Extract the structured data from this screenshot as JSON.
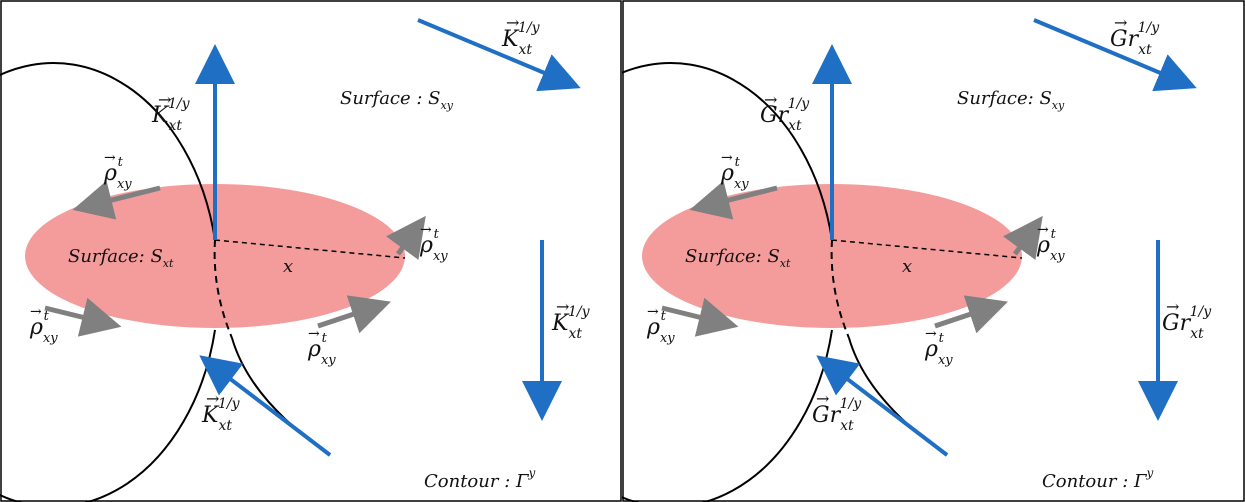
{
  "colors": {
    "border": "#000000",
    "ellipse_fill": "#f28b8b",
    "blue_arrow": "#1f6fc4",
    "gray_arrow": "#808080",
    "contour": "#000000"
  },
  "panels": [
    {
      "id": "left",
      "field_symbol": "K",
      "field_label": "K⃗ₓₜ¹ᐟʸ",
      "field_base": "K",
      "field_sub": "xt",
      "field_sup": "1/y",
      "surface_xy_label": "Surface : S",
      "surface_xy_sub": "xy",
      "surface_xt_label": "Surface: S",
      "surface_xt_sub": "xt",
      "contour_label": "Contour : Γ",
      "contour_sup": "y",
      "rho_base": "ρ",
      "rho_sub": "xy",
      "rho_sup": "t",
      "radius_label": "x"
    },
    {
      "id": "right",
      "field_symbol": "Gr",
      "field_base": "Gr",
      "field_sub": "xt",
      "field_sup": "1/y",
      "surface_xy_label": "Surface: S",
      "surface_xy_sub": "xy",
      "surface_xt_label": "Surface: S",
      "surface_xt_sub": "xt",
      "contour_label": "Contour : Γ",
      "contour_sup": "y",
      "rho_base": "ρ",
      "rho_sub": "xy",
      "rho_sup": "t",
      "radius_label": "x"
    }
  ]
}
